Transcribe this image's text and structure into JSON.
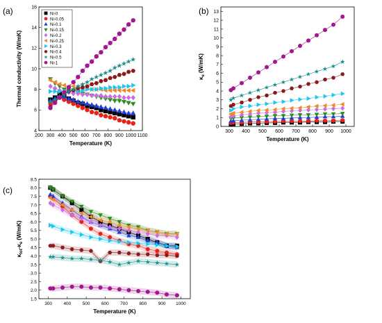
{
  "chart_data": [
    {
      "panel_label": "(a)",
      "type": "line",
      "xlabel": "Temperature (K)",
      "ylabel": "Thermal conductivity (W/mK)",
      "xlim": [
        200,
        1100
      ],
      "ylim": [
        4,
        16
      ],
      "xticks": [
        200,
        300,
        400,
        500,
        600,
        700,
        800,
        900,
        1000,
        1100
      ],
      "yticks": [
        4,
        6,
        8,
        10,
        12,
        14,
        16
      ],
      "legend_position": "top-left",
      "grid": false,
      "x": [
        300,
        340,
        380,
        420,
        460,
        500,
        540,
        580,
        620,
        660,
        700,
        740,
        780,
        820,
        860,
        900,
        940,
        980,
        1020
      ],
      "series": [
        {
          "name": "Ni-0",
          "color": "#000000",
          "marker": "square",
          "values": [
            7.0,
            7.2,
            7.6,
            7.4,
            7.1,
            6.9,
            6.7,
            6.6,
            6.4,
            6.3,
            6.2,
            6.0,
            5.9,
            5.8,
            5.7,
            5.6,
            5.5,
            5.4,
            5.3
          ]
        },
        {
          "name": "Ni-0.05",
          "color": "#e8211b",
          "marker": "circle",
          "values": [
            6.6,
            6.9,
            7.2,
            7.0,
            6.8,
            6.6,
            6.4,
            6.2,
            6.0,
            5.8,
            5.7,
            5.5,
            5.4,
            5.3,
            5.2,
            5.0,
            4.9,
            4.8,
            4.7
          ]
        },
        {
          "name": "Ni-0.1",
          "color": "#1f3fd9",
          "marker": "triangle-up",
          "values": [
            6.9,
            7.1,
            7.3,
            7.3,
            7.1,
            7.0,
            6.8,
            6.7,
            6.6,
            6.5,
            6.4,
            6.3,
            6.2,
            6.1,
            6.0,
            5.9,
            5.8,
            5.7,
            5.7
          ]
        },
        {
          "name": "Ni-0.15",
          "color": "#2c8c1e",
          "marker": "triangle-down",
          "values": [
            9.0,
            8.6,
            8.3,
            8.0,
            7.9,
            7.8,
            7.7,
            7.6,
            7.5,
            7.4,
            7.3,
            7.2,
            7.1,
            7.0,
            6.9,
            6.9,
            6.8,
            6.7,
            6.6
          ]
        },
        {
          "name": "Ni-0.2",
          "color": "#c86ee0",
          "marker": "diamond",
          "values": [
            8.3,
            8.1,
            7.9,
            7.8,
            7.7,
            7.6,
            7.6,
            7.5,
            7.5,
            7.4,
            7.4,
            7.4,
            7.3,
            7.3,
            7.3,
            7.3,
            7.2,
            7.2,
            7.2
          ]
        },
        {
          "name": "Ni-0.25",
          "color": "#f0892b",
          "marker": "triangle-left",
          "values": [
            8.9,
            8.7,
            8.5,
            8.4,
            8.3,
            8.3,
            8.2,
            8.1,
            8.1,
            8.0,
            8.0,
            8.0,
            7.9,
            7.9,
            7.9,
            7.9,
            7.9,
            7.9,
            7.9
          ]
        },
        {
          "name": "Ni-0.3",
          "color": "#1ec5f0",
          "marker": "triangle-right",
          "values": [
            7.8,
            7.8,
            7.8,
            7.8,
            7.8,
            7.9,
            7.9,
            7.9,
            8.0,
            8.0,
            8.0,
            8.1,
            8.1,
            8.2,
            8.2,
            8.2,
            8.3,
            8.3,
            8.4
          ]
        },
        {
          "name": "Ni-0.4",
          "color": "#8b1a1a",
          "marker": "hexagon",
          "values": [
            6.3,
            6.8,
            7.2,
            7.6,
            7.8,
            7.9,
            8.1,
            8.2,
            8.3,
            8.5,
            8.6,
            8.8,
            8.9,
            9.1,
            9.2,
            9.4,
            9.5,
            9.7,
            9.8
          ]
        },
        {
          "name": "Ni-0.5",
          "color": "#158f8a",
          "marker": "star",
          "values": [
            6.8,
            7.0,
            7.3,
            7.5,
            7.8,
            8.0,
            8.3,
            8.5,
            8.7,
            9.0,
            9.2,
            9.4,
            9.6,
            9.8,
            10.1,
            10.3,
            10.5,
            10.7,
            10.9
          ]
        },
        {
          "name": "Ni-1",
          "color": "#a0178f",
          "marker": "circle",
          "values": [
            6.2,
            6.7,
            7.2,
            7.7,
            8.2,
            8.7,
            9.2,
            9.8,
            10.3,
            10.7,
            11.2,
            11.6,
            12.1,
            12.5,
            12.9,
            13.4,
            13.8,
            14.3,
            14.7
          ]
        }
      ]
    },
    {
      "panel_label": "(b)",
      "type": "line",
      "xlabel": "Temperature (K)",
      "ylabel_main": "κ",
      "ylabel_sub": "e",
      "ylabel_unit": " (W/mK)",
      "xlim": [
        250,
        1050
      ],
      "ylim": [
        0,
        13.5
      ],
      "xticks": [
        300,
        400,
        500,
        600,
        700,
        800,
        900,
        1000
      ],
      "yticks": [
        0,
        1,
        2,
        3,
        4,
        5,
        6,
        7,
        8,
        9,
        10,
        11,
        12,
        13
      ],
      "grid": false,
      "x": [
        310,
        325,
        375,
        425,
        475,
        525,
        575,
        625,
        675,
        725,
        775,
        825,
        875,
        925,
        980
      ],
      "series": [
        {
          "name": "Ni-0",
          "color": "#000000",
          "marker": "square",
          "values": [
            0.2,
            0.25,
            0.3,
            0.35,
            0.35,
            0.4,
            0.4,
            0.45,
            0.45,
            0.45,
            0.5,
            0.5,
            0.5,
            0.55,
            0.55
          ]
        },
        {
          "name": "Ni-0.05",
          "color": "#e8211b",
          "marker": "circle",
          "values": [
            0.4,
            0.45,
            0.45,
            0.5,
            0.5,
            0.55,
            0.55,
            0.6,
            0.6,
            0.6,
            0.6,
            0.65,
            0.65,
            0.65,
            0.7
          ]
        },
        {
          "name": "Ni-0.1",
          "color": "#1f3fd9",
          "marker": "triangle-up",
          "values": [
            0.6,
            0.65,
            0.7,
            0.75,
            0.8,
            0.85,
            0.9,
            0.9,
            0.95,
            1.0,
            1.0,
            1.05,
            1.1,
            1.1,
            1.15
          ]
        },
        {
          "name": "Ni-0.15",
          "color": "#2c8c1e",
          "marker": "triangle-down",
          "values": [
            0.9,
            0.95,
            1.0,
            1.05,
            1.1,
            1.15,
            1.2,
            1.2,
            1.25,
            1.3,
            1.3,
            1.35,
            1.4,
            1.4,
            1.45
          ]
        },
        {
          "name": "Ni-0.2",
          "color": "#c86ee0",
          "marker": "diamond",
          "values": [
            1.1,
            1.2,
            1.3,
            1.4,
            1.5,
            1.55,
            1.6,
            1.7,
            1.75,
            1.8,
            1.85,
            1.9,
            1.95,
            2.0,
            2.05
          ]
        },
        {
          "name": "Ni-0.25",
          "color": "#f0892b",
          "marker": "triangle-left",
          "values": [
            1.4,
            1.5,
            1.6,
            1.7,
            1.8,
            1.85,
            1.9,
            2.0,
            2.05,
            2.1,
            2.2,
            2.3,
            2.35,
            2.4,
            2.5
          ]
        },
        {
          "name": "Ni-0.3",
          "color": "#1ec5f0",
          "marker": "triangle-right",
          "values": [
            1.8,
            2.0,
            2.2,
            2.3,
            2.45,
            2.55,
            2.7,
            2.8,
            2.95,
            3.05,
            3.15,
            3.3,
            3.4,
            3.55,
            3.7
          ]
        },
        {
          "name": "Ni-0.4",
          "color": "#8b1a1a",
          "marker": "hexagon",
          "values": [
            2.3,
            2.45,
            2.7,
            3.0,
            3.3,
            3.5,
            3.8,
            4.0,
            4.3,
            4.5,
            4.8,
            5.0,
            5.3,
            5.5,
            5.9
          ]
        },
        {
          "name": "Ni-0.5",
          "color": "#158f8a",
          "marker": "star",
          "values": [
            3.0,
            3.2,
            3.5,
            3.8,
            4.1,
            4.4,
            4.7,
            5.0,
            5.3,
            5.6,
            5.9,
            6.2,
            6.5,
            6.8,
            7.3
          ]
        },
        {
          "name": "Ni-1",
          "color": "#a0178f",
          "marker": "circle",
          "values": [
            4.1,
            4.3,
            4.9,
            5.5,
            6.1,
            6.7,
            7.3,
            7.9,
            8.5,
            9.1,
            9.7,
            10.3,
            10.9,
            11.5,
            12.4
          ]
        }
      ]
    },
    {
      "panel_label": "(c)",
      "type": "line",
      "xlabel": "Temperature (K)",
      "ylabel_main": "κ",
      "ylabel_sub1": "tot",
      "ylabel_mid": "-κ",
      "ylabel_sub2": "e",
      "ylabel_unit": " (W/mK)",
      "xlim": [
        250,
        1050
      ],
      "ylim": [
        1.5,
        8.5
      ],
      "xticks": [
        300,
        400,
        500,
        600,
        700,
        800,
        900,
        1000
      ],
      "yticks": [
        1.5,
        2.0,
        2.5,
        3.0,
        3.5,
        4.0,
        4.5,
        5.0,
        5.5,
        6.0,
        6.5,
        7.0,
        7.5,
        8.0,
        8.5
      ],
      "grid": false,
      "x": [
        310,
        325,
        375,
        425,
        475,
        525,
        575,
        625,
        675,
        725,
        775,
        825,
        875,
        925,
        980
      ],
      "series": [
        {
          "name": "Ni-0",
          "color": "#000000",
          "marker": "square",
          "values": [
            8.0,
            7.9,
            7.5,
            7.1,
            6.7,
            6.3,
            6.0,
            5.8,
            5.6,
            5.4,
            5.2,
            5.0,
            4.8,
            4.6,
            4.6
          ]
        },
        {
          "name": "Ni-0.05",
          "color": "#e8211b",
          "marker": "circle",
          "values": [
            7.5,
            7.4,
            6.9,
            6.4,
            6.0,
            5.6,
            5.3,
            5.1,
            4.9,
            4.7,
            4.6,
            4.4,
            4.3,
            4.2,
            4.1
          ]
        },
        {
          "name": "Ni-0.1",
          "color": "#1f3fd9",
          "marker": "triangle-up",
          "values": [
            7.6,
            7.5,
            7.1,
            6.7,
            6.3,
            6.0,
            5.8,
            5.6,
            5.4,
            5.2,
            5.1,
            4.9,
            4.8,
            4.6,
            4.5
          ]
        },
        {
          "name": "Ni-0.15",
          "color": "#2c8c1e",
          "marker": "triangle-down",
          "values": [
            8.0,
            7.9,
            7.5,
            7.2,
            6.9,
            6.6,
            6.4,
            6.2,
            6.0,
            5.8,
            5.7,
            5.5,
            5.4,
            5.3,
            5.3
          ]
        },
        {
          "name": "Ni-0.2",
          "color": "#c86ee0",
          "marker": "diamond",
          "values": [
            7.1,
            7.0,
            6.7,
            6.4,
            6.2,
            6.0,
            5.8,
            5.7,
            5.6,
            5.5,
            5.4,
            5.3,
            5.2,
            5.2,
            5.1
          ]
        },
        {
          "name": "Ni-0.25",
          "color": "#f0892b",
          "marker": "triangle-left",
          "values": [
            7.4,
            7.3,
            7.0,
            6.7,
            6.5,
            6.3,
            6.1,
            6.0,
            5.8,
            5.7,
            5.6,
            5.5,
            5.4,
            5.3,
            5.3
          ]
        },
        {
          "name": "Ni-0.3",
          "color": "#1ec5f0",
          "marker": "triangle-right",
          "values": [
            5.8,
            5.75,
            5.55,
            5.4,
            5.25,
            5.1,
            5.0,
            4.9,
            4.85,
            4.8,
            4.75,
            4.7,
            4.65,
            4.6,
            4.55
          ]
        },
        {
          "name": "Ni-0.4",
          "color": "#8b1a1a",
          "marker": "hexagon",
          "values": [
            4.6,
            4.6,
            4.5,
            4.4,
            4.35,
            4.3,
            3.7,
            4.2,
            4.2,
            4.15,
            4.1,
            4.1,
            4.05,
            4.05,
            4.0
          ]
        },
        {
          "name": "Ni-0.5",
          "color": "#158f8a",
          "marker": "star",
          "values": [
            3.95,
            3.95,
            3.9,
            3.85,
            3.85,
            3.8,
            3.75,
            3.65,
            3.5,
            3.6,
            3.7,
            3.65,
            3.6,
            3.55,
            3.5
          ]
        },
        {
          "name": "Ni-1",
          "color": "#a0178f",
          "marker": "circle",
          "values": [
            2.1,
            2.1,
            2.15,
            2.2,
            2.2,
            2.15,
            2.15,
            2.1,
            2.05,
            2.0,
            1.95,
            1.9,
            1.85,
            1.75,
            1.7
          ]
        }
      ]
    }
  ]
}
